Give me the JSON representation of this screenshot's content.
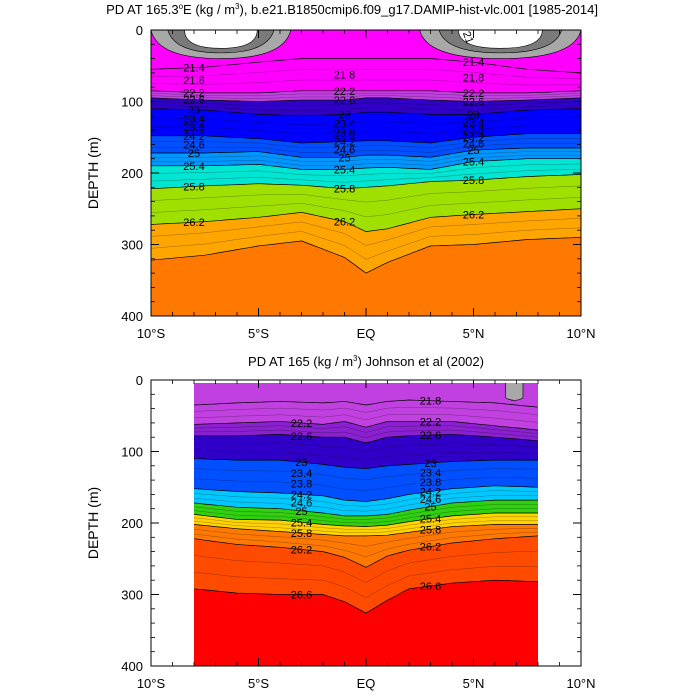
{
  "chart_data": [
    {
      "type": "heatmap",
      "title": "PD AT 165.3°E (kg / m³), b.e21.B1850cmip6.f09_g17.DAMIP-hist-vlc.001 [1985-2014]",
      "title_parts": {
        "prefix": "PD AT 165.3",
        "sup": "o",
        "middle": "E (kg / m",
        "sup2": "3",
        "suffix": "), b.e21.B1850cmip6.f09_g17.DAMIP-hist-vlc.001 [1985-2014]"
      },
      "xlabel": "",
      "ylabel": "DEPTH (m)",
      "x_ticks": [
        "10°S",
        "5°S",
        "EQ",
        "5°N",
        "10°N"
      ],
      "y_ticks": [
        "0",
        "100",
        "200",
        "300",
        "400"
      ],
      "xlim": [
        -10,
        10
      ],
      "ylim": [
        0,
        400
      ],
      "y_inverted": true,
      "levels": [
        20.2,
        20.6,
        21.0,
        21.4,
        21.8,
        22.2,
        22.6,
        23.0,
        23.4,
        23.8,
        24.2,
        24.6,
        25.0,
        25.4,
        25.8,
        26.2,
        26.6
      ],
      "isopycnal_depths": {
        "lat": [
          -10,
          -7.5,
          -5,
          -3,
          -1,
          0,
          1,
          3,
          5,
          7.5,
          10
        ],
        "21.4": [
          55,
          52,
          45,
          40,
          40,
          40,
          40,
          40,
          45,
          55,
          60
        ],
        "22.2": [
          85,
          88,
          88,
          85,
          85,
          85,
          85,
          85,
          88,
          88,
          85
        ],
        "22.6": [
          95,
          98,
          100,
          98,
          98,
          95,
          95,
          98,
          100,
          98,
          95
        ],
        "23": [
          110,
          112,
          118,
          120,
          118,
          115,
          115,
          118,
          118,
          112,
          110
        ],
        "24.2": [
          148,
          148,
          152,
          158,
          156,
          155,
          155,
          158,
          150,
          145,
          145
        ],
        "25": [
          172,
          172,
          170,
          178,
          178,
          175,
          175,
          178,
          168,
          165,
          165
        ],
        "25.4": [
          190,
          190,
          188,
          195,
          195,
          193,
          192,
          195,
          184,
          180,
          180
        ],
        "25.8": [
          222,
          218,
          215,
          217,
          222,
          220,
          218,
          212,
          210,
          205,
          202
        ],
        "26.2": [
          272,
          268,
          262,
          255,
          268,
          282,
          278,
          262,
          258,
          254,
          250
        ],
        "26.6": [
          322,
          315,
          302,
          295,
          318,
          340,
          325,
          302,
          300,
          293,
          290
        ]
      },
      "contour_labels_left": [
        "21.4",
        "21.8",
        "22.2",
        "22.6",
        "23",
        "23.4",
        "23.8",
        "24.2",
        "24.6",
        "25",
        "25.4",
        "25.8",
        "26.2"
      ],
      "contour_labels_center": [
        "21.8",
        "22.2",
        "22.6",
        "23",
        "23.4",
        "23.8",
        "24.2",
        "24.6",
        "25",
        "25.4",
        "25.8",
        "26.2"
      ],
      "contour_labels_right": [
        "21.4",
        "21.8",
        "22.2",
        "22.6",
        "23",
        "23.4",
        "23.8",
        "24.2",
        "24.6",
        "25",
        "25.4",
        "25.8",
        "26.2"
      ],
      "corner_label": "21"
    },
    {
      "type": "heatmap",
      "title": "PD AT 165 (kg / m³) Johnson et al (2002)",
      "title_parts": {
        "prefix": "PD AT 165 (kg / m",
        "sup": "3",
        "suffix": ") Johnson et al (2002)"
      },
      "xlabel": "",
      "ylabel": "DEPTH (m)",
      "x_ticks": [
        "10°S",
        "5°S",
        "EQ",
        "5°N",
        "10°N"
      ],
      "y_ticks": [
        "0",
        "100",
        "200",
        "300",
        "400"
      ],
      "xlim": [
        -10,
        10
      ],
      "ylim": [
        0,
        400
      ],
      "y_inverted": true,
      "data_lat_range": [
        -8,
        8
      ],
      "isopycnal_depths": {
        "lat": [
          -8,
          -6,
          -4,
          -2,
          -1,
          0,
          1,
          2,
          4,
          6,
          8
        ],
        "21.8": [
          35,
          32,
          30,
          32,
          30,
          35,
          30,
          28,
          30,
          32,
          38
        ],
        "22.2": [
          62,
          60,
          58,
          62,
          58,
          66,
          58,
          58,
          58,
          64,
          70
        ],
        "22.6": [
          78,
          78,
          76,
          80,
          80,
          88,
          80,
          78,
          76,
          80,
          85
        ],
        "23": [
          110,
          112,
          112,
          118,
          122,
          124,
          120,
          118,
          114,
          112,
          112
        ],
        "24.2": [
          152,
          156,
          158,
          162,
          168,
          170,
          166,
          160,
          152,
          148,
          150
        ],
        "25": [
          172,
          178,
          180,
          186,
          190,
          190,
          188,
          182,
          172,
          168,
          168
        ],
        "25.4": [
          188,
          195,
          196,
          202,
          204,
          205,
          203,
          198,
          190,
          186,
          186
        ],
        "25.8": [
          202,
          208,
          212,
          216,
          218,
          218,
          217,
          213,
          205,
          202,
          202
        ],
        "26.2": [
          222,
          230,
          234,
          240,
          248,
          262,
          246,
          238,
          228,
          222,
          218
        ],
        "26.6": [
          292,
          298,
          300,
          300,
          310,
          326,
          308,
          292,
          284,
          280,
          282
        ]
      },
      "contour_labels_left": [
        "22.2",
        "22.6",
        "23",
        "23.4",
        "23.8",
        "24.2",
        "24.6",
        "25",
        "25.4",
        "25.8",
        "26.2",
        "26.6"
      ],
      "contour_labels_right": [
        "21.8",
        "22.2",
        "22.6",
        "23",
        "23.4",
        "23.8",
        "24.2",
        "24.6",
        "25",
        "25.4",
        "25.8",
        "26.2",
        "26.6"
      ]
    }
  ],
  "colors": {
    "palette": [
      "#555555",
      "#7a7a7a",
      "#a8a8a8",
      "#ff00ff",
      "#c040e0",
      "#8a20d0",
      "#3000c8",
      "#0000ff",
      "#0050ff",
      "#0096ff",
      "#00c8ff",
      "#00e6d2",
      "#00e080",
      "#30d010",
      "#a0e000",
      "#e6f000",
      "#ffd200",
      "#ffa500",
      "#ff7800",
      "#ff4b00",
      "#ff0000",
      "#e00000",
      "#c00000"
    ]
  }
}
